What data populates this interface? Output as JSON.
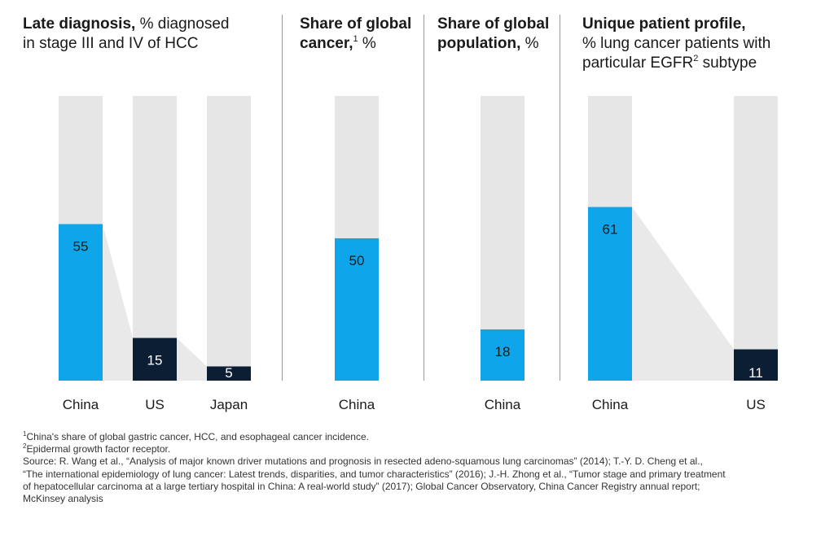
{
  "colors": {
    "china": "#0ea5ea",
    "other": "#0b1e33",
    "track": "#e6e6e6",
    "connector": "#e9e9e9",
    "label_light": "#1a1a1a",
    "label_dark": "#ffffff"
  },
  "panels": [
    {
      "title_bold": "Late diagnosis,",
      "title_rest": " % diagnosed in stage III and IV of HCC",
      "title_lines": [
        "",
        "in stage III and IV of HCC"
      ]
    },
    {
      "title_bold": "Share of global cancer,",
      "sup": "1",
      "title_rest": " %"
    },
    {
      "title_bold": "Share of global population,",
      "title_rest": " %"
    },
    {
      "title_bold": "Unique patient profile,",
      "title_line2": "% lung cancer patients with",
      "title_line3_pre": "particular EGFR",
      "sup": "2",
      "title_line3_post": " subtype"
    }
  ],
  "chart_data": [
    {
      "type": "bar",
      "title": "Late diagnosis, % diagnosed in stage III and IV of HCC",
      "categories": [
        "China",
        "US",
        "Japan"
      ],
      "values": [
        55,
        15,
        5
      ],
      "ylim": [
        0,
        100
      ]
    },
    {
      "type": "bar",
      "title": "Share of global cancer, %",
      "categories": [
        "China"
      ],
      "values": [
        50
      ],
      "ylim": [
        0,
        100
      ]
    },
    {
      "type": "bar",
      "title": "Share of global population, %",
      "categories": [
        "China"
      ],
      "values": [
        18
      ],
      "ylim": [
        0,
        100
      ]
    },
    {
      "type": "bar",
      "title": "Unique patient profile, % lung cancer patients with particular EGFR subtype",
      "categories": [
        "China",
        "US"
      ],
      "values": [
        61,
        11
      ],
      "ylim": [
        0,
        100
      ]
    }
  ],
  "footnotes": {
    "note1_sup": "1",
    "note1": "China's share of global gastric cancer, HCC, and esophageal cancer incidence.",
    "note2_sup": "2",
    "note2": "Epidermal growth factor receptor.",
    "source_lines": [
      "Source: R. Wang et al., “Analysis of major known driver mutations and prognosis in resected adeno-squamous lung carcinomas” (2014); T.-Y. D. Cheng et al.,",
      "“The international epidemiology of lung cancer: Latest trends, disparities, and tumor characteristics” (2016); J.-H. Zhong et al., “Tumor stage and primary treatment",
      "of hepatocellular carcinoma at a large tertiary hospital in China: A real-world study” (2017); Global Cancer Observatory, China Cancer Registry annual report;",
      "McKinsey analysis"
    ]
  }
}
